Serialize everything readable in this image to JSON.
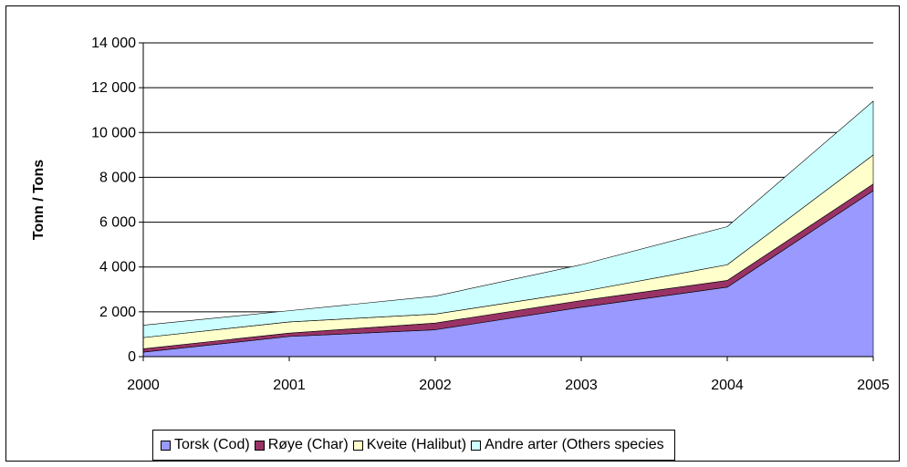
{
  "chart_data": {
    "type": "area",
    "stacked": true,
    "title": "",
    "xlabel": "",
    "ylabel": "Tonn / Tons",
    "x": [
      2000,
      2001,
      2002,
      2003,
      2004,
      2005
    ],
    "x_tick_labels": [
      "2000",
      "2001",
      "2002",
      "2003",
      "2004",
      "2005"
    ],
    "ylim": [
      0,
      14000
    ],
    "y_ticks": [
      0,
      2000,
      4000,
      6000,
      8000,
      10000,
      12000,
      14000
    ],
    "y_tick_labels": [
      "0",
      "2 000",
      "4 000",
      "6 000",
      "8 000",
      "10 000",
      "12 000",
      "14 000"
    ],
    "grid": "horizontal",
    "legend_position": "bottom",
    "series": [
      {
        "name": "Torsk (Cod)",
        "color": "#9999ff",
        "values": [
          200,
          900,
          1200,
          2200,
          3100,
          7400
        ]
      },
      {
        "name": "Røye (Char)",
        "color": "#993366",
        "values": [
          150,
          150,
          300,
          300,
          300,
          300
        ]
      },
      {
        "name": "Kveite (Halibut)",
        "color": "#ffffcc",
        "values": [
          500,
          500,
          400,
          400,
          700,
          1300
        ]
      },
      {
        "name": "Andre arter (Others species",
        "color": "#ccffff",
        "values": [
          550,
          500,
          800,
          1200,
          1700,
          2400
        ]
      }
    ]
  }
}
